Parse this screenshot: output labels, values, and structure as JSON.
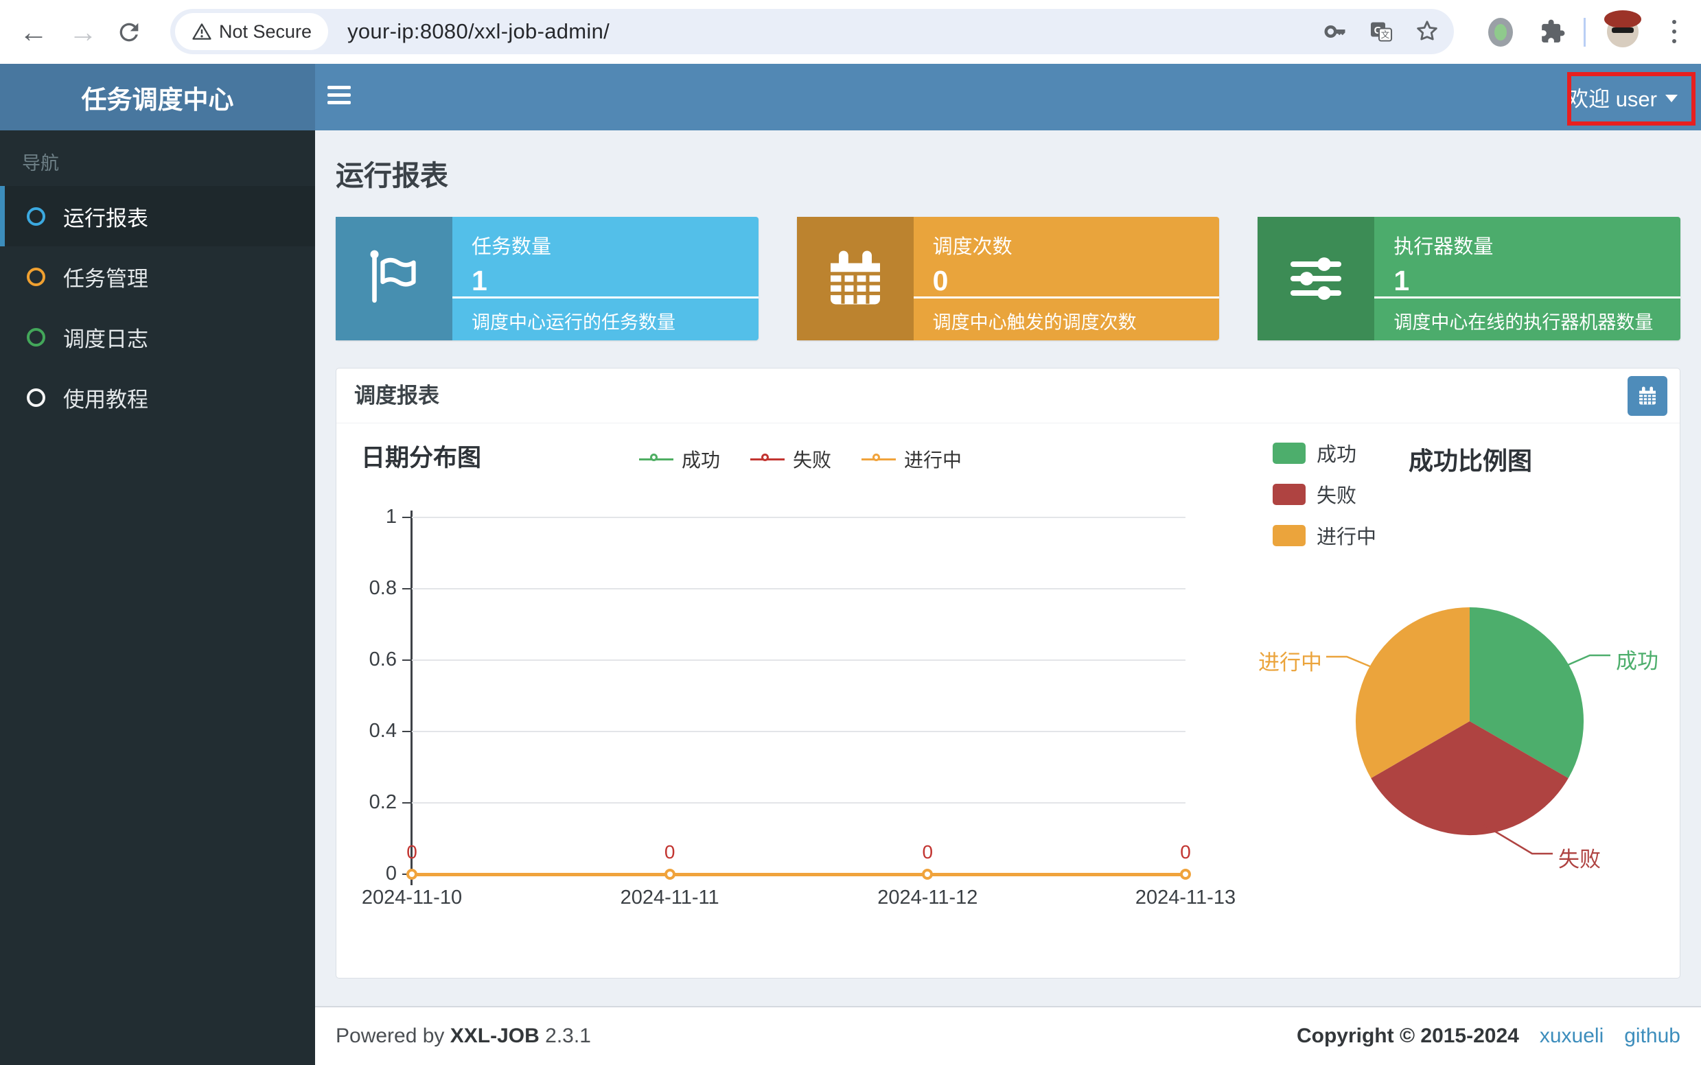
{
  "browser": {
    "security_label": "Not Secure",
    "url": "your-ip:8080/xxl-job-admin/"
  },
  "header": {
    "brand": "任务调度中心",
    "user_menu": "欢迎 user"
  },
  "annotation": {
    "box_color": "#e81f1f"
  },
  "icons": {
    "chrome": [
      "back-icon",
      "forward-icon",
      "reload-icon",
      "warning-triangle-icon",
      "key-icon",
      "translate-icon",
      "star-icon",
      "extensions-puzzle-icon",
      "profile-avatar",
      "kebab-menu-icon"
    ],
    "app": [
      "hamburger-icon",
      "caret-down-icon",
      "flag-icon",
      "calendar-icon",
      "sliders-icon",
      "circle-o-icon"
    ]
  },
  "sidebar": {
    "section_label": "导航",
    "items": [
      {
        "label": "运行报表",
        "color": "#3ba9e0",
        "active": true
      },
      {
        "label": "任务管理",
        "color": "#f0a030",
        "active": false
      },
      {
        "label": "调度日志",
        "color": "#43a75a",
        "active": false
      },
      {
        "label": "使用教程",
        "color": "#f5f5f5",
        "active": false
      }
    ]
  },
  "main": {
    "page_title": "运行报表",
    "stat_cards": [
      {
        "title": "任务数量",
        "value": "1",
        "desc": "调度中心运行的任务数量",
        "body_color": "#53bfe9",
        "icon_color": "#478fb0",
        "icon": "flag-icon"
      },
      {
        "title": "调度次数",
        "value": "0",
        "desc": "调度中心触发的调度次数",
        "body_color": "#e9a43c",
        "icon_color": "#bc832f",
        "icon": "calendar-icon"
      },
      {
        "title": "执行器数量",
        "value": "1",
        "desc": "调度中心在线的执行器机器数量",
        "body_color": "#4cac6c",
        "icon_color": "#3c8c55",
        "icon": "sliders-icon"
      }
    ],
    "panel_title": "调度报表"
  },
  "chart_data": [
    {
      "type": "line",
      "title": "日期分布图",
      "x": [
        "2024-11-10",
        "2024-11-11",
        "2024-11-12",
        "2024-11-13"
      ],
      "series": [
        {
          "name": "成功",
          "color": "#4fae63",
          "values": [
            0,
            0,
            0,
            0
          ]
        },
        {
          "name": "失败",
          "color": "#c23531",
          "values": [
            0,
            0,
            0,
            0
          ]
        },
        {
          "name": "进行中",
          "color": "#f0a33c",
          "values": [
            0,
            0,
            0,
            0
          ]
        }
      ],
      "point_labels": [
        "0",
        "0",
        "0",
        "0"
      ],
      "point_label_color": "#c23531",
      "ylim": [
        0,
        1
      ],
      "yticks": [
        "0",
        "0.2",
        "0.4",
        "0.6",
        "0.8",
        "1"
      ],
      "grid": true,
      "legend_position": "top"
    },
    {
      "type": "pie",
      "title": "成功比例图",
      "slices": [
        {
          "name": "成功",
          "value": 1,
          "color": "#4dae6c"
        },
        {
          "name": "失败",
          "value": 1,
          "color": "#af4341"
        },
        {
          "name": "进行中",
          "value": 1,
          "color": "#eba43c"
        }
      ],
      "legend_position": "left-top"
    }
  ],
  "footer": {
    "powered_by": "Powered by",
    "product": "XXL-JOB",
    "version": "2.3.1",
    "copyright": "Copyright © 2015-2024",
    "link1": "xuxueli",
    "link2": "github"
  }
}
